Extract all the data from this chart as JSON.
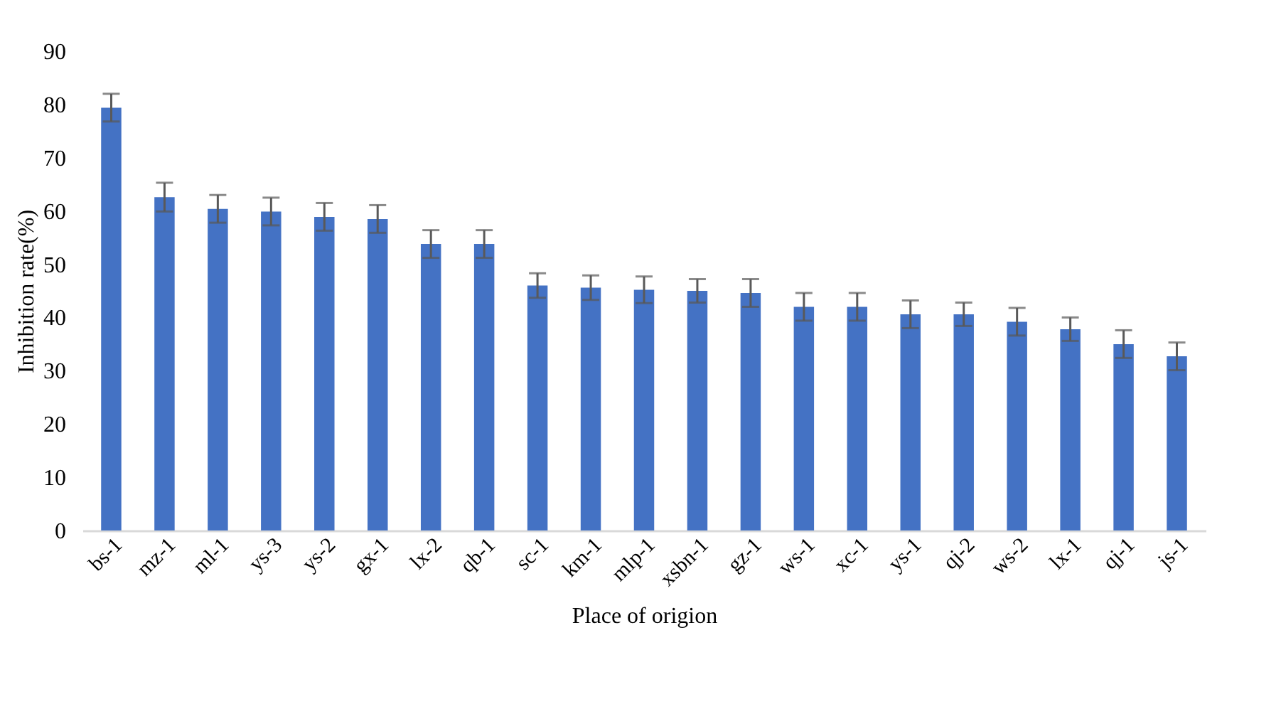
{
  "chart_data": {
    "type": "bar",
    "xlabel": "Place of origion",
    "ylabel": "Inhibition rate(%)",
    "categories": [
      "bs-1",
      "mz-1",
      "ml-1",
      "ys-3",
      "ys-2",
      "gx-1",
      "lx-2",
      "qb-1",
      "sc-1",
      "km-1",
      "mlp-1",
      "xsbn-1",
      "gz-1",
      "ws-1",
      "xc-1",
      "ys-1",
      "qj-2",
      "ws-2",
      "lx-1",
      "qj-1",
      "js-1"
    ],
    "values": [
      79.4,
      62.6,
      60.4,
      59.9,
      58.9,
      58.5,
      53.8,
      53.8,
      46.0,
      45.6,
      45.2,
      45.0,
      44.6,
      42.0,
      42.0,
      40.6,
      40.6,
      39.2,
      37.8,
      35.0,
      32.7
    ],
    "errors": [
      2.6,
      2.7,
      2.6,
      2.6,
      2.6,
      2.6,
      2.6,
      2.6,
      2.3,
      2.3,
      2.5,
      2.2,
      2.6,
      2.6,
      2.6,
      2.6,
      2.2,
      2.6,
      2.2,
      2.6,
      2.6
    ],
    "color": "#4472c4",
    "ylim": [
      0,
      90
    ],
    "yticks": [
      0,
      10,
      20,
      30,
      40,
      50,
      60,
      70,
      80,
      90
    ],
    "grid": false
  }
}
